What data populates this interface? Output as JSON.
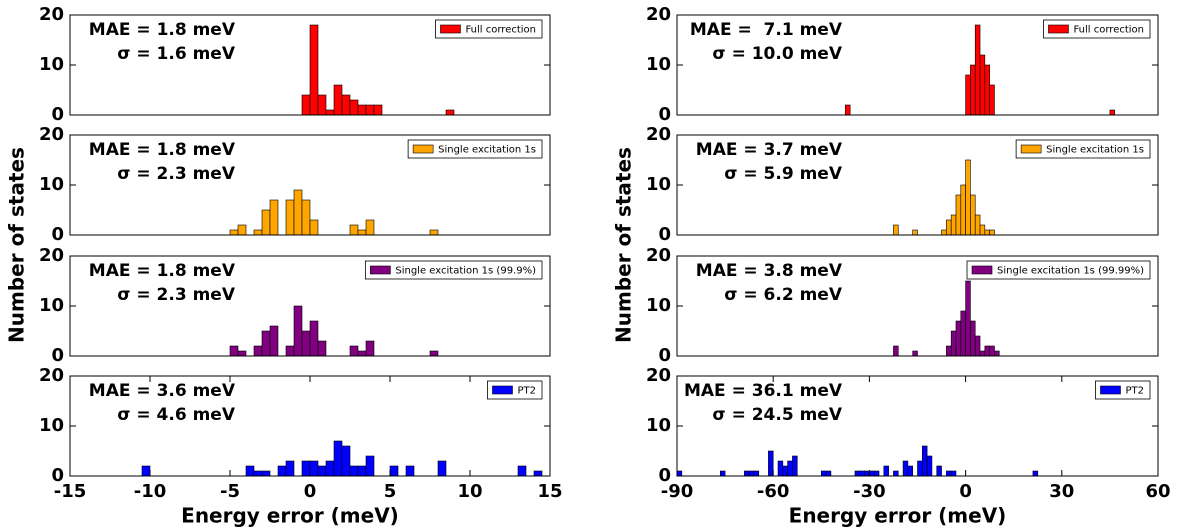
{
  "chart_data": [
    {
      "type": "histogram",
      "annotations": [
        "MAE = 1.8 meV",
        "σ = 1.6 meV"
      ],
      "ylabel": "Number of states",
      "xlim": [
        -15,
        15
      ],
      "ylim": [
        0,
        20
      ],
      "yticks": [
        0,
        10,
        20
      ],
      "bins": [
        -0.5,
        0,
        0.5,
        1,
        1.5,
        2,
        2.5,
        3,
        3.5,
        4,
        4.5,
        5,
        5.5,
        6,
        6.5,
        7,
        7.5,
        8,
        8.5,
        9
      ],
      "series": [
        {
          "name": "Full correction",
          "color": "#ff0000",
          "values": [
            4,
            18,
            4,
            1,
            6,
            4,
            3,
            2,
            2,
            2,
            0,
            0,
            0,
            0,
            0,
            0,
            0,
            0,
            1
          ]
        }
      ]
    },
    {
      "type": "histogram",
      "annotations": [
        "MAE = 1.8 meV",
        "σ = 2.3 meV"
      ],
      "xlim": [
        -15,
        15
      ],
      "ylim": [
        0,
        20
      ],
      "yticks": [
        0,
        10,
        20
      ],
      "bins": [
        -5,
        -4.5,
        -4,
        -3.5,
        -3,
        -2.5,
        -2,
        -1.5,
        -1,
        -0.5,
        0,
        0.5,
        1,
        1.5,
        2,
        2.5,
        3,
        3.5,
        4,
        4.5,
        5,
        5.5,
        6,
        6.5,
        7,
        7.5,
        8
      ],
      "series": [
        {
          "name": "Single excitation 1s",
          "color": "#ffa500",
          "values": [
            1,
            2,
            0,
            1,
            5,
            7,
            0,
            7,
            9,
            7,
            3,
            0,
            0,
            0,
            0,
            2,
            1,
            3,
            0,
            0,
            0,
            0,
            0,
            0,
            0,
            1
          ]
        }
      ]
    },
    {
      "type": "histogram",
      "annotations": [
        "MAE = 1.8 meV",
        "σ = 2.3 meV"
      ],
      "xlim": [
        -15,
        15
      ],
      "ylim": [
        0,
        20
      ],
      "yticks": [
        0,
        10,
        20
      ],
      "bins": [
        -5,
        -4.5,
        -4,
        -3.5,
        -3,
        -2.5,
        -2,
        -1.5,
        -1,
        -0.5,
        0,
        0.5,
        1,
        1.5,
        2,
        2.5,
        3,
        3.5,
        4,
        4.5,
        5,
        5.5,
        6,
        6.5,
        7,
        7.5,
        8
      ],
      "series": [
        {
          "name": "Single excitation 1s (99.9%)",
          "color": "#800080",
          "values": [
            2,
            1,
            0,
            2,
            5,
            6,
            0,
            2,
            10,
            5,
            7,
            3,
            0,
            0,
            0,
            2,
            1,
            3,
            0,
            0,
            0,
            0,
            0,
            0,
            0,
            1
          ]
        }
      ]
    },
    {
      "type": "histogram",
      "annotations": [
        "MAE = 3.6 meV",
        "σ = 4.6 meV"
      ],
      "xlabel": "Energy error (meV)",
      "xlim": [
        -15,
        15
      ],
      "xticks": [
        -15,
        -10,
        -5,
        0,
        5,
        10,
        15
      ],
      "ylim": [
        0,
        20
      ],
      "yticks": [
        0,
        10,
        20
      ],
      "bins": [
        -10.5,
        -10,
        -9.5,
        -9,
        -8.5,
        -8,
        -7.5,
        -7,
        -6.5,
        -6,
        -5.5,
        -5,
        -4.5,
        -4,
        -3.5,
        -3,
        -2.5,
        -2,
        -1.5,
        -1,
        -0.5,
        0,
        0.5,
        1,
        1.5,
        2,
        2.5,
        3,
        3.5,
        4,
        4.5,
        5,
        5.5,
        6,
        6.5,
        7,
        7.5,
        8,
        8.5,
        9,
        9.5,
        10,
        10.5,
        11,
        11.5,
        12,
        12.5,
        13,
        13.5,
        14,
        14.5
      ],
      "series": [
        {
          "name": "PT2",
          "color": "#0000ff",
          "values": [
            2,
            0,
            0,
            0,
            0,
            0,
            0,
            0,
            0,
            0,
            0,
            0,
            0,
            2,
            1,
            1,
            0,
            2,
            3,
            0,
            3,
            3,
            2,
            3,
            7,
            6,
            2,
            2,
            4,
            0,
            0,
            2,
            0,
            2,
            0,
            0,
            0,
            3,
            0,
            0,
            0,
            0,
            0,
            0,
            0,
            0,
            0,
            2,
            0,
            1
          ]
        }
      ]
    },
    {
      "type": "histogram",
      "annotations": [
        "MAE =  7.1 meV",
        "σ = 10.0 meV"
      ],
      "ylabel": "Number of states",
      "xlim": [
        -90,
        60
      ],
      "ylim": [
        0,
        20
      ],
      "yticks": [
        0,
        10,
        20
      ],
      "bins": [
        -37.5,
        -36,
        -34.5,
        -33,
        -31.5,
        -30,
        -28.5,
        -27,
        -25.5,
        -24,
        -22.5,
        -21,
        -19.5,
        -18,
        -16.5,
        -15,
        -13.5,
        -12,
        -10.5,
        -9,
        -7.5,
        -6,
        -4.5,
        -3,
        -1.5,
        0,
        1.5,
        3,
        4.5,
        6,
        7.5,
        9,
        10.5,
        12,
        13.5,
        15,
        16.5,
        18,
        19.5,
        21,
        22.5,
        24,
        25.5,
        27,
        28.5,
        30,
        31.5,
        33,
        34.5,
        36,
        37.5,
        39,
        40.5,
        42,
        43.5,
        45,
        46.5
      ],
      "series": [
        {
          "name": "Full correction",
          "color": "#ff0000",
          "values": [
            2,
            0,
            0,
            0,
            0,
            0,
            0,
            0,
            0,
            0,
            0,
            0,
            0,
            0,
            0,
            0,
            0,
            0,
            0,
            0,
            0,
            0,
            0,
            0,
            0,
            8,
            10,
            18,
            12,
            10,
            6,
            0,
            0,
            0,
            0,
            0,
            0,
            0,
            0,
            0,
            0,
            0,
            0,
            0,
            0,
            0,
            0,
            0,
            0,
            0,
            0,
            0,
            0,
            0,
            0,
            1
          ]
        }
      ]
    },
    {
      "type": "histogram",
      "annotations": [
        "MAE = 3.7 meV",
        "σ = 5.9 meV"
      ],
      "xlim": [
        -90,
        60
      ],
      "ylim": [
        0,
        20
      ],
      "yticks": [
        0,
        10,
        20
      ],
      "bins": [
        -24,
        -22.5,
        -21,
        -19.5,
        -18,
        -16.5,
        -15,
        -13.5,
        -12,
        -10.5,
        -9,
        -7.5,
        -6,
        -4.5,
        -3,
        -1.5,
        0,
        1.5,
        3,
        4.5,
        6,
        7.5,
        9,
        10.5
      ],
      "series": [
        {
          "name": "Single excitation 1s",
          "color": "#ffa500",
          "values": [
            0,
            2,
            0,
            0,
            0,
            1,
            0,
            0,
            0,
            0,
            0,
            1,
            3,
            4,
            8,
            10,
            15,
            8,
            4,
            2,
            1,
            1,
            0
          ]
        }
      ]
    },
    {
      "type": "histogram",
      "annotations": [
        "MAE = 3.8 meV",
        "σ = 6.2 meV"
      ],
      "xlim": [
        -90,
        60
      ],
      "ylim": [
        0,
        20
      ],
      "yticks": [
        0,
        10,
        20
      ],
      "bins": [
        -24,
        -22.5,
        -21,
        -19.5,
        -18,
        -16.5,
        -15,
        -13.5,
        -12,
        -10.5,
        -9,
        -7.5,
        -6,
        -4.5,
        -3,
        -1.5,
        0,
        1.5,
        3,
        4.5,
        6,
        7.5,
        9,
        10.5
      ],
      "series": [
        {
          "name": "Single excitation 1s (99.99%)",
          "color": "#800080",
          "values": [
            0,
            2,
            0,
            0,
            0,
            1,
            0,
            0,
            0,
            0,
            0,
            0,
            2,
            5,
            7,
            9,
            15,
            7,
            4,
            1,
            2,
            2,
            1
          ]
        }
      ]
    },
    {
      "type": "histogram",
      "annotations": [
        "MAE = 36.1 meV",
        "σ = 24.5 meV"
      ],
      "xlabel": "Energy error (meV)",
      "xlim": [
        -90,
        60
      ],
      "xticks": [
        -90,
        -60,
        -30,
        0,
        30,
        60
      ],
      "ylim": [
        0,
        20
      ],
      "yticks": [
        0,
        10,
        20
      ],
      "bins": [
        -90,
        -88.5,
        -87,
        -85.5,
        -84,
        -82.5,
        -81,
        -79.5,
        -78,
        -76.5,
        -75,
        -73.5,
        -72,
        -70.5,
        -69,
        -67.5,
        -66,
        -64.5,
        -63,
        -61.5,
        -60,
        -58.5,
        -57,
        -55.5,
        -54,
        -52.5,
        -51,
        -49.5,
        -48,
        -46.5,
        -45,
        -43.5,
        -42,
        -40.5,
        -39,
        -37.5,
        -36,
        -34.5,
        -33,
        -31.5,
        -30,
        -28.5,
        -27,
        -25.5,
        -24,
        -22.5,
        -21,
        -19.5,
        -18,
        -16.5,
        -15,
        -13.5,
        -12,
        -10.5,
        -9,
        -7.5,
        -6,
        -4.5,
        -3,
        -1.5,
        0,
        1.5,
        3,
        4.5,
        6,
        7.5,
        9,
        10.5,
        12,
        13.5,
        15,
        16.5,
        18,
        19.5,
        21,
        22.5
      ],
      "series": [
        {
          "name": "PT2",
          "color": "#0000ff",
          "values": [
            1,
            0,
            0,
            0,
            0,
            0,
            0,
            0,
            0,
            1,
            0,
            0,
            0,
            0,
            1,
            1,
            1,
            0,
            0,
            5,
            0,
            3,
            2,
            3,
            4,
            0,
            0,
            0,
            0,
            0,
            1,
            1,
            0,
            0,
            0,
            0,
            0,
            1,
            1,
            1,
            1,
            1,
            0,
            2,
            0,
            1,
            0,
            3,
            2,
            0,
            3,
            6,
            4,
            0,
            2,
            0,
            1,
            1,
            0,
            0,
            0,
            0,
            0,
            0,
            0,
            0,
            0,
            0,
            0,
            0,
            0,
            0,
            0,
            0,
            1
          ]
        }
      ]
    }
  ]
}
